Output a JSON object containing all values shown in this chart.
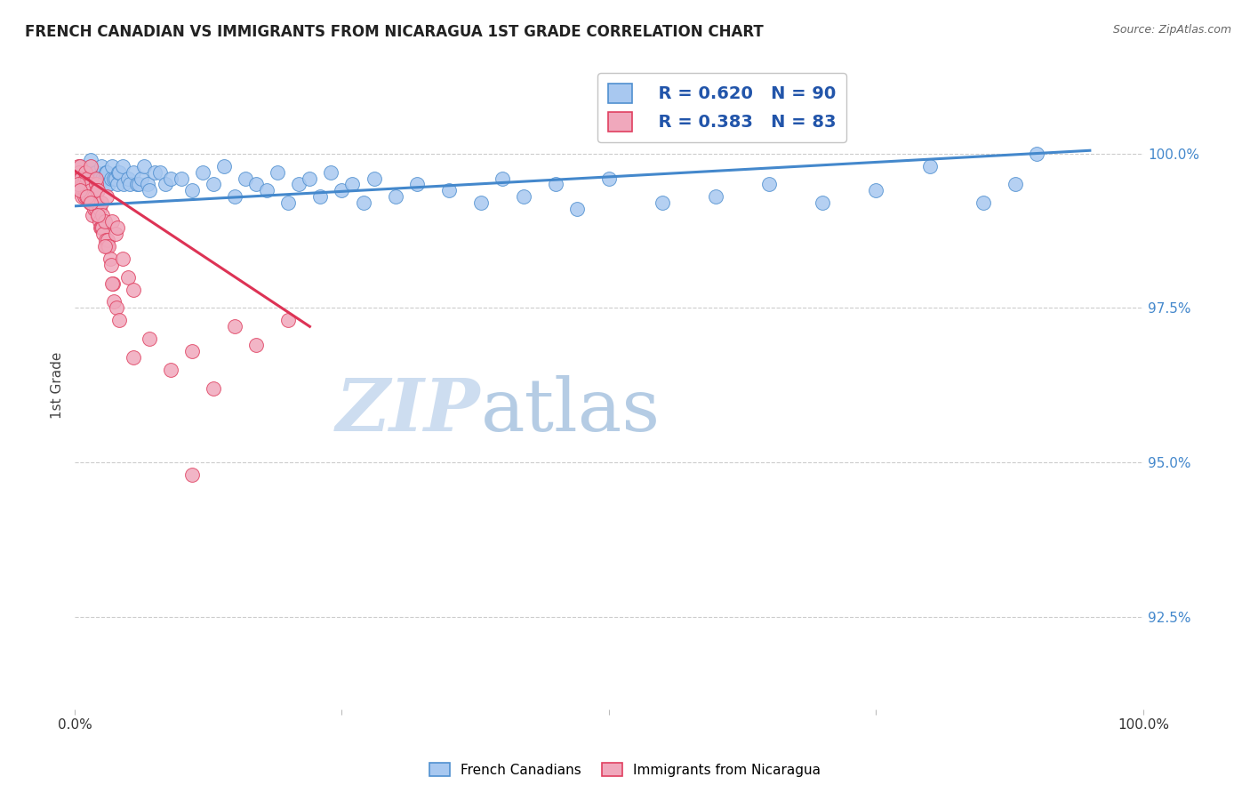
{
  "title": "FRENCH CANADIAN VS IMMIGRANTS FROM NICARAGUA 1ST GRADE CORRELATION CHART",
  "source": "Source: ZipAtlas.com",
  "ylabel": "1st Grade",
  "ytick_labels": [
    "92.5%",
    "95.0%",
    "97.5%",
    "100.0%"
  ],
  "ytick_values": [
    92.5,
    95.0,
    97.5,
    100.0
  ],
  "xlim": [
    0.0,
    100.0
  ],
  "ylim": [
    91.0,
    101.5
  ],
  "legend_blue_r": "R = 0.620",
  "legend_blue_n": "N = 90",
  "legend_pink_r": "R = 0.383",
  "legend_pink_n": "N = 83",
  "legend_blue_label": "French Canadians",
  "legend_pink_label": "Immigrants from Nicaragua",
  "blue_color": "#a8c8f0",
  "pink_color": "#f0a8bc",
  "blue_edge_color": "#5090d0",
  "pink_edge_color": "#e04060",
  "blue_line_color": "#4488cc",
  "pink_line_color": "#dd3355",
  "watermark_zip": "ZIP",
  "watermark_atlas": "atlas",
  "blue_scatter_x": [
    0.2,
    0.3,
    0.4,
    0.5,
    0.5,
    0.6,
    0.7,
    0.8,
    0.9,
    1.0,
    1.1,
    1.2,
    1.3,
    1.4,
    1.5,
    1.5,
    1.6,
    1.7,
    1.8,
    1.9,
    2.0,
    2.1,
    2.2,
    2.3,
    2.5,
    2.6,
    2.8,
    2.9,
    3.0,
    3.1,
    3.2,
    3.4,
    3.5,
    3.7,
    3.8,
    4.0,
    4.1,
    4.2,
    4.5,
    4.6,
    5.0,
    5.2,
    5.5,
    5.8,
    6.0,
    6.2,
    6.5,
    6.8,
    7.0,
    7.5,
    8.0,
    8.5,
    9.0,
    10.0,
    11.0,
    12.0,
    13.0,
    14.0,
    15.0,
    16.0,
    17.0,
    18.0,
    19.0,
    20.0,
    21.0,
    22.0,
    23.0,
    24.0,
    25.0,
    26.0,
    27.0,
    28.0,
    30.0,
    32.0,
    35.0,
    38.0,
    40.0,
    42.0,
    45.0,
    47.0,
    50.0,
    55.0,
    60.0,
    65.0,
    70.0,
    75.0,
    80.0,
    85.0,
    88.0,
    90.0
  ],
  "blue_scatter_y": [
    99.6,
    99.5,
    99.7,
    99.8,
    99.5,
    99.6,
    99.7,
    99.6,
    99.5,
    99.7,
    99.5,
    99.6,
    99.7,
    99.5,
    99.8,
    99.9,
    99.6,
    99.5,
    99.6,
    99.7,
    99.7,
    99.5,
    99.5,
    99.6,
    99.8,
    99.6,
    99.6,
    99.7,
    99.7,
    99.5,
    99.5,
    99.6,
    99.8,
    99.6,
    99.6,
    99.5,
    99.7,
    99.7,
    99.8,
    99.5,
    99.6,
    99.5,
    99.7,
    99.5,
    99.5,
    99.6,
    99.8,
    99.5,
    99.4,
    99.7,
    99.7,
    99.5,
    99.6,
    99.6,
    99.4,
    99.7,
    99.5,
    99.8,
    99.3,
    99.6,
    99.5,
    99.4,
    99.7,
    99.2,
    99.5,
    99.6,
    99.3,
    99.7,
    99.4,
    99.5,
    99.2,
    99.6,
    99.3,
    99.5,
    99.4,
    99.2,
    99.6,
    99.3,
    99.5,
    99.1,
    99.6,
    99.2,
    99.3,
    99.5,
    99.2,
    99.4,
    99.8,
    99.2,
    99.5,
    100.0
  ],
  "pink_scatter_x": [
    0.2,
    0.3,
    0.3,
    0.4,
    0.4,
    0.5,
    0.5,
    0.5,
    0.6,
    0.6,
    0.7,
    0.7,
    0.8,
    0.8,
    0.9,
    1.0,
    1.0,
    1.0,
    1.1,
    1.1,
    1.2,
    1.2,
    1.3,
    1.3,
    1.4,
    1.5,
    1.5,
    1.5,
    1.6,
    1.6,
    1.7,
    1.8,
    1.8,
    1.9,
    2.0,
    2.0,
    2.0,
    2.1,
    2.1,
    2.2,
    2.2,
    2.3,
    2.3,
    2.4,
    2.5,
    2.5,
    2.6,
    2.6,
    2.7,
    2.8,
    2.9,
    3.0,
    3.0,
    3.1,
    3.2,
    3.3,
    3.4,
    3.5,
    3.6,
    3.7,
    3.8,
    3.9,
    4.0,
    4.5,
    5.0,
    5.5,
    7.0,
    9.0,
    11.0,
    13.0,
    15.0,
    17.0,
    20.0,
    0.3,
    0.5,
    1.2,
    1.5,
    2.2,
    2.8,
    3.5,
    4.2,
    5.5,
    11.0
  ],
  "pink_scatter_y": [
    99.7,
    99.8,
    99.5,
    99.7,
    99.6,
    99.8,
    99.5,
    99.6,
    99.6,
    99.4,
    99.5,
    99.3,
    99.5,
    99.4,
    99.3,
    99.6,
    99.4,
    99.7,
    99.5,
    99.3,
    99.4,
    99.6,
    99.5,
    99.3,
    99.2,
    99.5,
    99.4,
    99.8,
    99.3,
    99.2,
    99.0,
    99.3,
    99.1,
    99.2,
    99.5,
    99.1,
    99.6,
    99.4,
    99.2,
    99.4,
    99.0,
    99.1,
    98.9,
    98.8,
    99.2,
    98.8,
    98.8,
    99.0,
    98.7,
    98.9,
    98.6,
    99.3,
    98.5,
    98.6,
    98.5,
    98.3,
    98.2,
    98.9,
    97.9,
    97.6,
    98.7,
    97.5,
    98.8,
    98.3,
    98.0,
    97.8,
    97.0,
    96.5,
    96.8,
    96.2,
    97.2,
    96.9,
    97.3,
    99.5,
    99.4,
    99.3,
    99.2,
    99.0,
    98.5,
    97.9,
    97.3,
    96.7,
    94.8
  ],
  "blue_trend_x": [
    0.0,
    95.0
  ],
  "blue_trend_y": [
    99.15,
    100.05
  ],
  "pink_trend_x": [
    0.0,
    22.0
  ],
  "pink_trend_y": [
    99.72,
    97.2
  ]
}
